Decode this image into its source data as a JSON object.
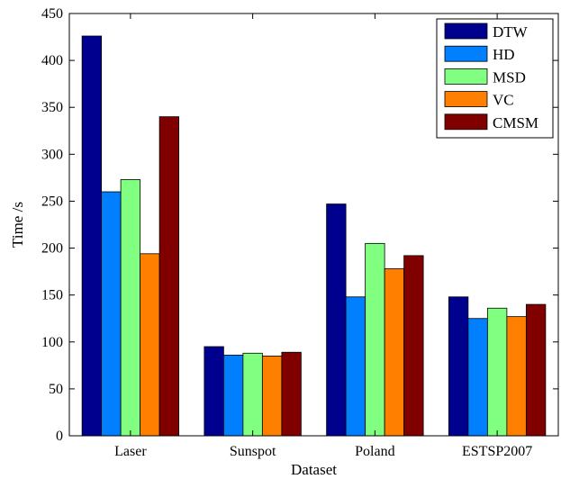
{
  "chart_data": {
    "type": "bar",
    "title": "",
    "xlabel": "Dataset",
    "ylabel": "Time /s",
    "ylim": [
      0,
      450
    ],
    "yticks": [
      0,
      50,
      100,
      150,
      200,
      250,
      300,
      350,
      400,
      450
    ],
    "categories": [
      "Laser",
      "Sunspot",
      "Poland",
      "ESTSP2007"
    ],
    "series": [
      {
        "name": "DTW",
        "color": "#00008f",
        "values": [
          426,
          95,
          247,
          148
        ]
      },
      {
        "name": "HD",
        "color": "#0080ff",
        "values": [
          260,
          86,
          148,
          125
        ]
      },
      {
        "name": "MSD",
        "color": "#80ff80",
        "values": [
          273,
          88,
          205,
          136
        ]
      },
      {
        "name": "VC",
        "color": "#ff7f00",
        "values": [
          194,
          85,
          178,
          127
        ]
      },
      {
        "name": "CMSM",
        "color": "#800000",
        "values": [
          340,
          89,
          192,
          140
        ]
      }
    ],
    "legend_position": "top-right",
    "grid": false
  }
}
